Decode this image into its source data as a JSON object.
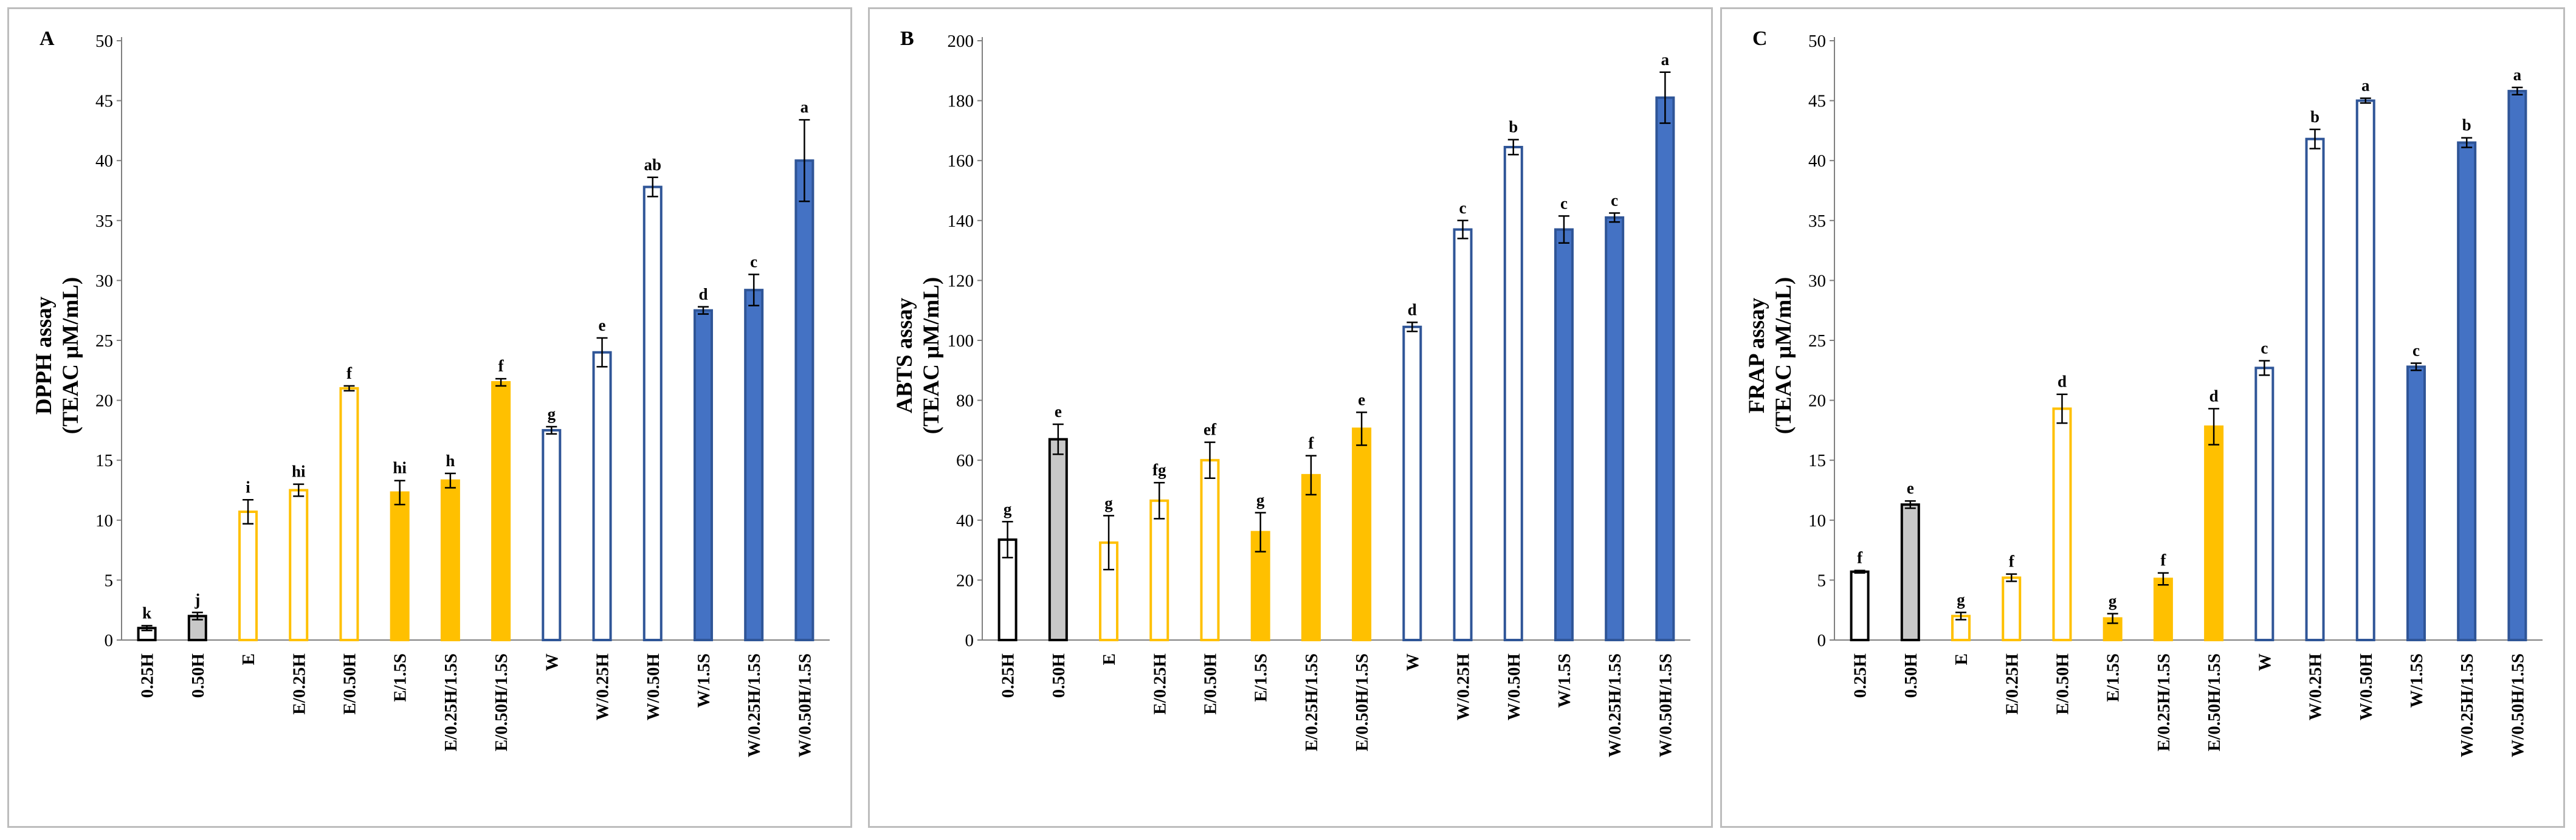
{
  "chart_data": [
    {
      "type": "bar",
      "panel_letter": "A",
      "ylabel_line1": "DPPH assay",
      "ylabel_line2": "(TEAC  μM/mL)",
      "ylim": [
        0,
        50
      ],
      "yticks": [
        0,
        5,
        10,
        15,
        20,
        25,
        30,
        35,
        40,
        45,
        50
      ],
      "categories": [
        "0.25H",
        "0.50H",
        "E",
        "E/0.25H",
        "E/0.50H",
        "E/1.5S",
        "E/0.25H/1.5S",
        "E/0.50H/1.5S",
        "W",
        "W/0.25H",
        "W/0.50H",
        "W/1.5S",
        "W/0.25H/1.5S",
        "W/0.50H/1.5S"
      ],
      "values": [
        1.0,
        2.0,
        10.7,
        12.5,
        21.0,
        12.3,
        13.3,
        21.5,
        17.5,
        24.0,
        37.8,
        27.5,
        29.2,
        40.0
      ],
      "errors": [
        0.2,
        0.3,
        1.0,
        0.5,
        0.2,
        1.0,
        0.6,
        0.3,
        0.3,
        1.2,
        0.8,
        0.3,
        1.3,
        3.4
      ],
      "letters": [
        "k",
        "j",
        "i",
        "hi",
        "f",
        "hi",
        "h",
        "f",
        "g",
        "e",
        "ab",
        "d",
        "c",
        "a"
      ],
      "colors": {
        "black_outline": "#000000",
        "gray_fill": "#c8c8c8",
        "gold": "#ffc000",
        "blue_outline": "#2f5597",
        "blue_fill": "#4472c4"
      }
    },
    {
      "type": "bar",
      "panel_letter": "B",
      "ylabel_line1": "ABTS assay",
      "ylabel_line2": "(TEAC  μM/mL)",
      "ylim": [
        0,
        200
      ],
      "yticks": [
        0,
        20,
        40,
        60,
        80,
        100,
        120,
        140,
        160,
        180,
        200
      ],
      "categories": [
        "0.25H",
        "0.50H",
        "E",
        "E/0.25H",
        "E/0.50H",
        "E/1.5S",
        "E/0.25H/1.5S",
        "E/0.50H/1.5S",
        "W",
        "W/0.25H",
        "W/0.50H",
        "W/1.5S",
        "W/0.25H/1.5S",
        "W/0.50H/1.5S"
      ],
      "values": [
        33.5,
        67.0,
        32.5,
        46.5,
        60.0,
        36.0,
        55.0,
        70.5,
        104.5,
        137.0,
        164.5,
        137.0,
        141.0,
        181.0
      ],
      "errors": [
        6.0,
        5.0,
        9.0,
        6.0,
        6.0,
        6.5,
        6.5,
        5.5,
        1.5,
        3.0,
        2.5,
        4.5,
        1.5,
        8.5
      ],
      "letters": [
        "g",
        "e",
        "g",
        "fg",
        "ef",
        "g",
        "f",
        "e",
        "d",
        "c",
        "b",
        "c",
        "c",
        "a"
      ],
      "colors": {
        "black_outline": "#000000",
        "gray_fill": "#c8c8c8",
        "gold": "#ffc000",
        "blue_outline": "#2f5597",
        "blue_fill": "#4472c4"
      }
    },
    {
      "type": "bar",
      "panel_letter": "C",
      "ylabel_line1": "FRAP assay",
      "ylabel_line2": "(TEAC  μM/mL)",
      "ylim": [
        0,
        50
      ],
      "yticks": [
        0,
        5,
        10,
        15,
        20,
        25,
        30,
        35,
        40,
        45,
        50
      ],
      "categories": [
        "0.25H",
        "0.50H",
        "E",
        "E/0.25H",
        "E/0.50H",
        "E/1.5S",
        "E/0.25H/1.5S",
        "E/0.50H/1.5S",
        "W",
        "W/0.25H",
        "W/0.50H",
        "W/1.5S",
        "W/0.25H/1.5S",
        "W/0.50H/1.5S"
      ],
      "values": [
        5.7,
        11.3,
        2.0,
        5.2,
        19.3,
        1.8,
        5.1,
        17.8,
        22.7,
        41.8,
        45.0,
        22.8,
        41.5,
        45.8
      ],
      "errors": [
        0.1,
        0.3,
        0.3,
        0.3,
        1.2,
        0.4,
        0.5,
        1.5,
        0.6,
        0.8,
        0.2,
        0.3,
        0.4,
        0.3
      ],
      "letters": [
        "f",
        "e",
        "g",
        "f",
        "d",
        "g",
        "f",
        "d",
        "c",
        "b",
        "a",
        "c",
        "b",
        "a"
      ],
      "colors": {
        "black_outline": "#000000",
        "gray_fill": "#c8c8c8",
        "gold": "#ffc000",
        "blue_outline": "#2f5597",
        "blue_fill": "#4472c4"
      }
    }
  ]
}
